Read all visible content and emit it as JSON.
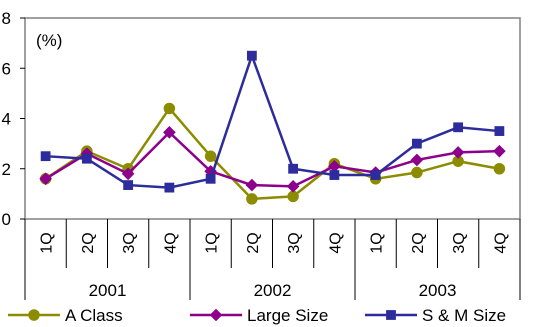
{
  "chart_data": {
    "type": "line",
    "title": "",
    "ylabel": "(%)",
    "xlabel": "",
    "ylim": [
      0,
      8
    ],
    "yticks": [
      "0",
      "2",
      "4",
      "6",
      "8"
    ],
    "grid": false,
    "legend_position": "bottom",
    "categories": [
      "1Q",
      "2Q",
      "3Q",
      "4Q",
      "1Q",
      "2Q",
      "3Q",
      "4Q",
      "1Q",
      "2Q",
      "3Q",
      "4Q"
    ],
    "years": [
      "2001",
      "2002",
      "2003"
    ],
    "series": [
      {
        "name": "A Class",
        "color": "#8c8c00",
        "marker": "circle",
        "values": [
          1.6,
          2.7,
          2.0,
          4.4,
          2.5,
          0.8,
          0.9,
          2.2,
          1.6,
          1.85,
          2.3,
          2.0
        ]
      },
      {
        "name": "Large Size",
        "color": "#8c008c",
        "marker": "diamond",
        "values": [
          1.6,
          2.6,
          1.8,
          3.45,
          1.9,
          1.35,
          1.3,
          2.1,
          1.85,
          2.35,
          2.65,
          2.7
        ]
      },
      {
        "name": "S & M Size",
        "color": "#2c2c9c",
        "marker": "square",
        "values": [
          2.5,
          2.4,
          1.35,
          1.25,
          1.6,
          6.5,
          2.0,
          1.75,
          1.75,
          3.0,
          3.65,
          3.5
        ]
      }
    ]
  }
}
